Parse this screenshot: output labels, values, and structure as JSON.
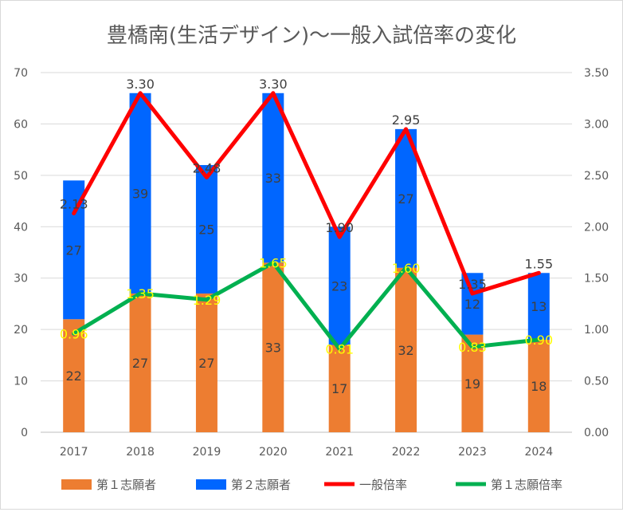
{
  "chart_data": {
    "type": "bar",
    "title": "豊橋南(生活デザイン)～一般入試倍率の変化",
    "categories": [
      "2017",
      "2018",
      "2019",
      "2020",
      "2021",
      "2022",
      "2023",
      "2024"
    ],
    "left_axis": {
      "ylim": [
        0,
        70
      ],
      "ticks": [
        "0",
        "10",
        "20",
        "30",
        "40",
        "50",
        "60",
        "70"
      ]
    },
    "right_axis": {
      "ylim": [
        0,
        3.5
      ],
      "ticks": [
        "0.00",
        "0.50",
        "1.00",
        "1.50",
        "2.00",
        "2.50",
        "3.00",
        "3.50"
      ]
    },
    "grid": true,
    "legend_position": "bottom",
    "series": [
      {
        "name": "第１志願者",
        "kind": "stacked-bar",
        "axis": "left",
        "color": "#ed7d31",
        "label_color": "#404040",
        "values": [
          22,
          27,
          27,
          33,
          17,
          32,
          19,
          18
        ]
      },
      {
        "name": "第２志願者",
        "kind": "stacked-bar",
        "axis": "left",
        "color": "#0066ff",
        "label_color": "#404040",
        "values": [
          27,
          39,
          25,
          33,
          23,
          27,
          12,
          13
        ]
      },
      {
        "name": "一般倍率",
        "kind": "line",
        "axis": "right",
        "color": "#ff0000",
        "label_color": "#404040",
        "values": [
          2.13,
          3.3,
          2.48,
          3.3,
          1.9,
          2.95,
          1.35,
          1.55
        ],
        "labels": [
          "2.13",
          "3.30",
          "2.48",
          "3.30",
          "1.90",
          "2.95",
          "1.35",
          "1.55"
        ]
      },
      {
        "name": "第１志願倍率",
        "kind": "line",
        "axis": "right",
        "color": "#00b050",
        "label_color": "#ffff00",
        "values": [
          0.96,
          1.35,
          1.29,
          1.65,
          0.81,
          1.6,
          0.83,
          0.9
        ],
        "labels": [
          "0.96",
          "1.35",
          "1.29",
          "1.65",
          "0.81",
          "1.60",
          "0.83",
          "0.90"
        ]
      }
    ]
  }
}
